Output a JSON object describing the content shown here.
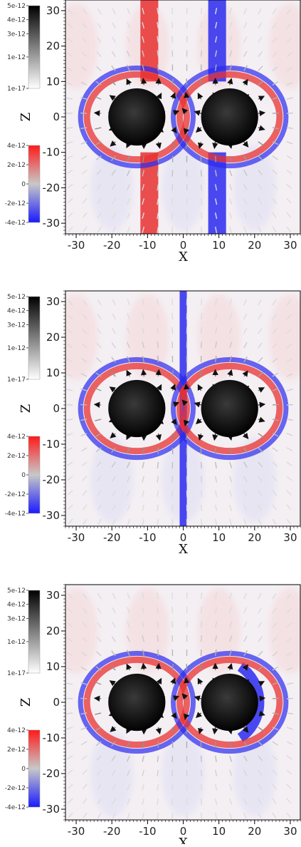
{
  "figure": {
    "panels": [
      {
        "id": "panel-1",
        "xlabel": "X",
        "ylabel": "Z",
        "xticks": [
          "-30",
          "-20",
          "-10",
          "0",
          "10",
          "20",
          "30"
        ],
        "zticks": [
          "30",
          "20",
          "10",
          "0",
          "-10",
          "-20",
          "-30"
        ],
        "colorbar_gray": {
          "labels": [
            "5e-12",
            "4e-12",
            "3e-12",
            "1e-12",
            "1e-17"
          ]
        },
        "colorbar_rb": {
          "labels": [
            "4e-12",
            "2e-12",
            "0",
            "-2e-12",
            "-4e-12"
          ]
        }
      },
      {
        "id": "panel-2",
        "xlabel": "X",
        "ylabel": "Z",
        "xticks": [
          "-30",
          "-20",
          "-10",
          "0",
          "10",
          "20",
          "30"
        ],
        "zticks": [
          "30",
          "20",
          "10",
          "0",
          "-10",
          "-20",
          "-30"
        ],
        "colorbar_gray": {
          "labels": [
            "5e-12",
            "4e-12",
            "3e-12",
            "1e-12",
            "1e-17"
          ]
        },
        "colorbar_rb": {
          "labels": [
            "4e-12",
            "2e-12",
            "0",
            "-2e-12",
            "-4e-12"
          ]
        }
      },
      {
        "id": "panel-3",
        "xlabel": "X",
        "ylabel": "Z",
        "xticks": [
          "-30",
          "-20",
          "-10",
          "0",
          "10",
          "20",
          "30"
        ],
        "zticks": [
          "30",
          "20",
          "10",
          "0",
          "-10",
          "-20",
          "-30"
        ],
        "colorbar_gray": {
          "labels": [
            "5e-12",
            "4e-12",
            "3e-12",
            "1e-12",
            "1e-17"
          ]
        },
        "colorbar_rb": {
          "labels": [
            "4e-12",
            "2e-12",
            "0",
            "-2e-12",
            "-4e-12"
          ]
        }
      }
    ]
  },
  "chart_data": [
    {
      "type": "heatmap",
      "title": "",
      "xlabel": "X",
      "ylabel": "Z",
      "xlim": [
        -33,
        33
      ],
      "ylim": [
        -33,
        33
      ],
      "xticks": [
        -30,
        -20,
        -10,
        0,
        10,
        20,
        30
      ],
      "yticks": [
        30,
        20,
        10,
        0,
        -10,
        -20,
        -30
      ],
      "colorbar_gray": {
        "range": [
          1e-17,
          5e-12
        ],
        "colors": [
          "#ffffff",
          "#000000"
        ]
      },
      "colorbar_rb": {
        "range": [
          -4e-12,
          4e-12
        ],
        "colors": [
          "#1a1aff",
          "#c8c8c8",
          "#ff1a1a"
        ]
      },
      "bodies": [
        {
          "x": -13,
          "z": 0,
          "radius": 8
        },
        {
          "x": 13,
          "z": 0,
          "radius": 8
        }
      ],
      "features": [
        {
          "kind": "vertical-band",
          "color": "red",
          "x": [
            -12,
            -7
          ],
          "z": [
            10,
            33
          ]
        },
        {
          "kind": "vertical-band",
          "color": "red",
          "x": [
            -12,
            -7
          ],
          "z": [
            -33,
            -10
          ]
        },
        {
          "kind": "vertical-band",
          "color": "blue",
          "x": [
            7,
            12
          ],
          "z": [
            10,
            33
          ]
        },
        {
          "kind": "vertical-band",
          "color": "blue",
          "x": [
            7,
            12
          ],
          "z": [
            -33,
            -10
          ]
        }
      ]
    },
    {
      "type": "heatmap",
      "title": "",
      "xlabel": "X",
      "ylabel": "Z",
      "xlim": [
        -33,
        33
      ],
      "ylim": [
        -33,
        33
      ],
      "xticks": [
        -30,
        -20,
        -10,
        0,
        10,
        20,
        30
      ],
      "yticks": [
        30,
        20,
        10,
        0,
        -10,
        -20,
        -30
      ],
      "colorbar_gray": {
        "range": [
          1e-17,
          5e-12
        ],
        "colors": [
          "#ffffff",
          "#000000"
        ]
      },
      "colorbar_rb": {
        "range": [
          -4e-12,
          4e-12
        ],
        "colors": [
          "#1a1aff",
          "#c8c8c8",
          "#ff1a1a"
        ]
      },
      "bodies": [
        {
          "x": -13,
          "z": 0,
          "radius": 8
        },
        {
          "x": 13,
          "z": 0,
          "radius": 8
        }
      ],
      "features": [
        {
          "kind": "vertical-band",
          "color": "blue",
          "x": [
            -1,
            1
          ],
          "z": [
            -33,
            33
          ]
        }
      ]
    },
    {
      "type": "heatmap",
      "title": "",
      "xlabel": "X",
      "ylabel": "Z",
      "xlim": [
        -33,
        33
      ],
      "ylim": [
        -33,
        33
      ],
      "xticks": [
        -30,
        -20,
        -10,
        0,
        10,
        20,
        30
      ],
      "yticks": [
        30,
        20,
        10,
        0,
        -10,
        -20,
        -30
      ],
      "colorbar_gray": {
        "range": [
          1e-17,
          5e-12
        ],
        "colors": [
          "#ffffff",
          "#000000"
        ]
      },
      "colorbar_rb": {
        "range": [
          -4e-12,
          4e-12
        ],
        "colors": [
          "#1a1aff",
          "#c8c8c8",
          "#ff1a1a"
        ]
      },
      "bodies": [
        {
          "x": -13,
          "z": 0,
          "radius": 8
        },
        {
          "x": 13,
          "z": 0,
          "radius": 8
        }
      ],
      "features": [
        {
          "kind": "arc-shell",
          "color": "blue",
          "center_x": 16,
          "z": [
            -10,
            10
          ]
        }
      ]
    }
  ]
}
